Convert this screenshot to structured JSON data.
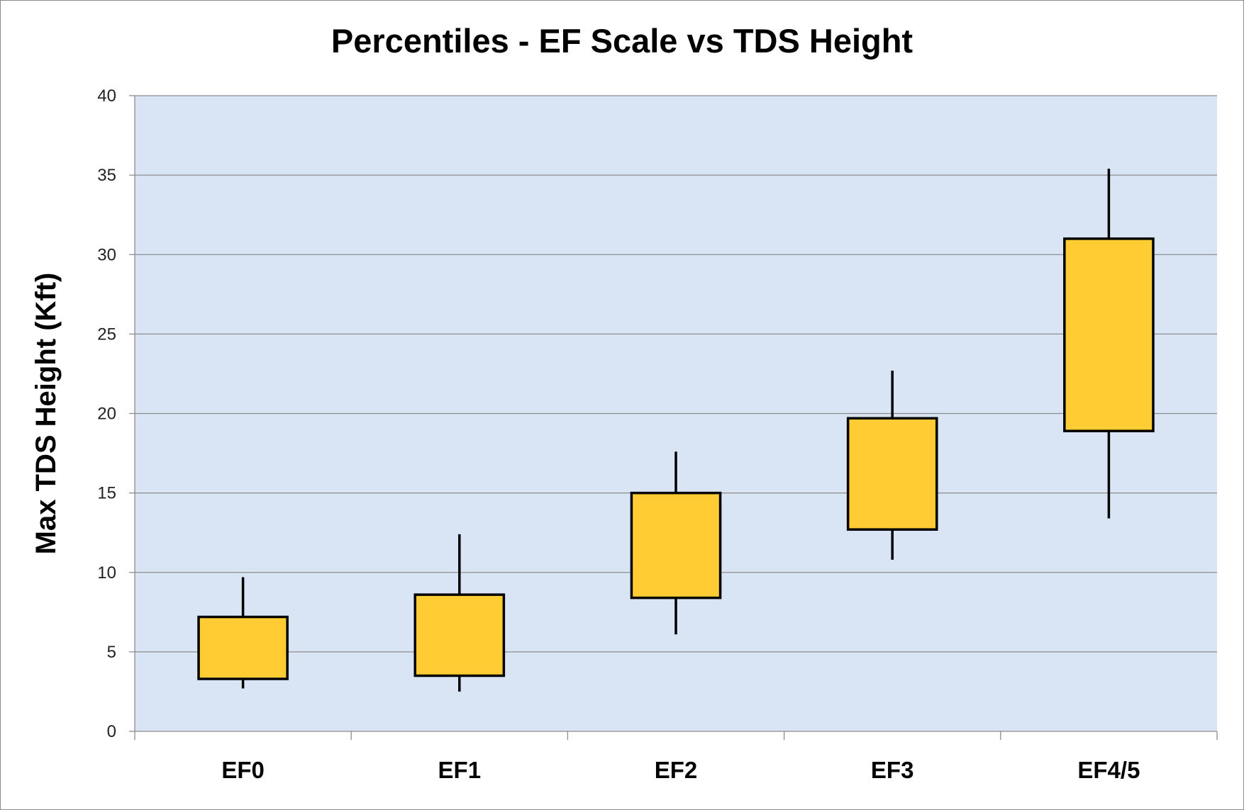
{
  "chart_data": {
    "type": "box",
    "title": "Percentiles - EF Scale vs TDS Height",
    "xlabel": "",
    "ylabel": "Max TDS Height (Kft)",
    "ylim": [
      0,
      40
    ],
    "yticks": [
      0,
      5,
      10,
      15,
      20,
      25,
      30,
      35,
      40
    ],
    "grid": true,
    "legend": "none",
    "categories": [
      "EF0",
      "EF1",
      "EF2",
      "EF3",
      "EF4/5"
    ],
    "boxes": [
      {
        "category": "EF0",
        "low": 2.7,
        "q1": 3.3,
        "q3": 7.2,
        "high": 9.7
      },
      {
        "category": "EF1",
        "low": 2.5,
        "q1": 3.5,
        "q3": 8.6,
        "high": 12.4
      },
      {
        "category": "EF2",
        "low": 6.1,
        "q1": 8.4,
        "q3": 15.0,
        "high": 17.6
      },
      {
        "category": "EF3",
        "low": 10.8,
        "q1": 12.7,
        "q3": 19.7,
        "high": 22.7
      },
      {
        "category": "EF4/5",
        "low": 13.4,
        "q1": 18.9,
        "q3": 31.0,
        "high": 35.4
      }
    ],
    "colors": {
      "plot_background": "#d9e5f4",
      "box_fill": "#ffcc33",
      "box_stroke": "#000000",
      "gridline": "#8c8c8c"
    }
  }
}
